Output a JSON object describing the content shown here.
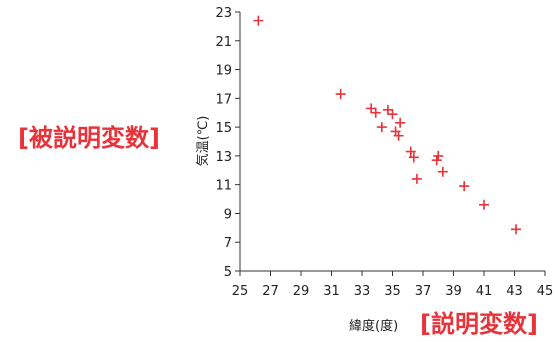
{
  "chart_data": {
    "type": "scatter",
    "xlabel": "緯度(度)",
    "ylabel": "気温(℃)",
    "xlim": [
      25,
      45
    ],
    "ylim": [
      5,
      23
    ],
    "xticks": [
      25,
      27,
      29,
      31,
      33,
      35,
      37,
      39,
      41,
      43,
      45
    ],
    "yticks": [
      5,
      7,
      9,
      11,
      13,
      15,
      17,
      19,
      21,
      23
    ],
    "grid": false,
    "marker": "+",
    "marker_color": "#e8333a",
    "annotations": {
      "y_side": "[被説明変数]",
      "x_side": "[説明変数]",
      "color": "#e8333a"
    },
    "points": [
      {
        "x": 26.2,
        "y": 22.4
      },
      {
        "x": 31.6,
        "y": 17.3
      },
      {
        "x": 33.6,
        "y": 16.3
      },
      {
        "x": 33.9,
        "y": 16.0
      },
      {
        "x": 34.7,
        "y": 16.2
      },
      {
        "x": 35.0,
        "y": 15.9
      },
      {
        "x": 34.3,
        "y": 15.0
      },
      {
        "x": 35.2,
        "y": 14.7
      },
      {
        "x": 35.5,
        "y": 15.3
      },
      {
        "x": 35.4,
        "y": 14.4
      },
      {
        "x": 36.2,
        "y": 13.3
      },
      {
        "x": 36.4,
        "y": 12.9
      },
      {
        "x": 37.9,
        "y": 12.7
      },
      {
        "x": 38.0,
        "y": 13.0
      },
      {
        "x": 38.3,
        "y": 11.9
      },
      {
        "x": 36.6,
        "y": 11.4
      },
      {
        "x": 39.7,
        "y": 10.9
      },
      {
        "x": 41.0,
        "y": 9.6
      },
      {
        "x": 43.1,
        "y": 7.9
      }
    ]
  }
}
